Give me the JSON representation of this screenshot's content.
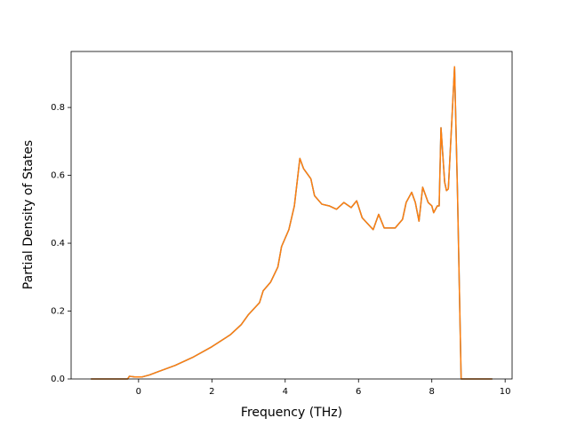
{
  "chart_data": {
    "type": "line",
    "xlabel": "Frequency (THz)",
    "ylabel": "Partial Density of States",
    "x": [
      -1.3,
      -0.3,
      -0.25,
      -0.1,
      0.1,
      0.3,
      0.5,
      1,
      1.5,
      2,
      2.5,
      2.8,
      3,
      3.3,
      3.4,
      3.6,
      3.8,
      3.9,
      4.1,
      4.25,
      4.4,
      4.5,
      4.7,
      4.8,
      5,
      5.2,
      5.4,
      5.6,
      5.8,
      5.95,
      6.1,
      6.4,
      6.55,
      6.7,
      7,
      7.2,
      7.3,
      7.45,
      7.55,
      7.65,
      7.75,
      7.9,
      8.0,
      8.05,
      8.15,
      8.2,
      8.25,
      8.35,
      8.4,
      8.45,
      8.55,
      8.62,
      8.7,
      8.8,
      9.65
    ],
    "series": [
      {
        "color": "#1f77b4",
        "values": [
          0,
          0,
          0.008,
          0.006,
          0.006,
          0.012,
          0.02,
          0.04,
          0.065,
          0.095,
          0.13,
          0.16,
          0.19,
          0.225,
          0.26,
          0.285,
          0.33,
          0.39,
          0.44,
          0.51,
          0.65,
          0.62,
          0.59,
          0.54,
          0.515,
          0.51,
          0.5,
          0.52,
          0.505,
          0.525,
          0.475,
          0.44,
          0.485,
          0.445,
          0.445,
          0.47,
          0.52,
          0.55,
          0.52,
          0.465,
          0.565,
          0.52,
          0.51,
          0.49,
          0.51,
          0.51,
          0.74,
          0.58,
          0.555,
          0.56,
          0.77,
          0.92,
          0.55,
          0,
          0
        ]
      },
      {
        "color": "#ff7f0e",
        "values": [
          0,
          0,
          0.008,
          0.006,
          0.006,
          0.012,
          0.02,
          0.04,
          0.065,
          0.095,
          0.13,
          0.16,
          0.19,
          0.225,
          0.26,
          0.285,
          0.33,
          0.39,
          0.44,
          0.51,
          0.65,
          0.62,
          0.59,
          0.54,
          0.515,
          0.51,
          0.5,
          0.52,
          0.505,
          0.525,
          0.475,
          0.44,
          0.485,
          0.445,
          0.445,
          0.47,
          0.52,
          0.55,
          0.52,
          0.465,
          0.565,
          0.52,
          0.51,
          0.49,
          0.51,
          0.51,
          0.74,
          0.58,
          0.555,
          0.56,
          0.77,
          0.92,
          0.55,
          0,
          0
        ]
      }
    ],
    "xlim": [
      -1.84,
      10.19
    ],
    "xticks": [
      0,
      2,
      4,
      6,
      8,
      10
    ],
    "ylim": [
      0,
      0.965
    ],
    "yticks": [
      {
        "value": 0,
        "label": "0.0"
      },
      0.2,
      0.4,
      0.6,
      0.8
    ]
  }
}
